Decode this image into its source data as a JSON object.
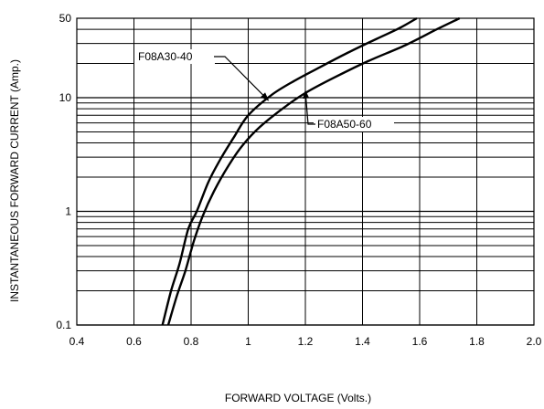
{
  "chart_data": {
    "type": "line",
    "title": "",
    "xlabel": "FORWARD VOLTAGE (Volts.)",
    "ylabel": "INSTANTANEOUS FORWARD CURRENT (Amp.)",
    "xlim": [
      0.4,
      2.0
    ],
    "ylim": [
      0.1,
      50
    ],
    "yscale": "log",
    "grid": true,
    "x_ticks": [
      0.4,
      0.6,
      0.8,
      1.0,
      1.2,
      1.4,
      1.6,
      1.8,
      2.0
    ],
    "x_tick_labels": [
      "0.4",
      "0.6",
      "0.8",
      "1",
      "1.2",
      "1.4",
      "1.6",
      "1.8",
      "2.0"
    ],
    "y_ticks": [
      0.1,
      1,
      10,
      50
    ],
    "y_tick_labels": [
      "0.1",
      "1",
      "10",
      "50"
    ],
    "series": [
      {
        "name": "F08A30-40",
        "x": [
          0.7,
          0.73,
          0.76,
          0.79,
          0.82,
          0.86,
          0.9,
          0.95,
          1.0,
          1.08,
          1.16,
          1.25,
          1.35,
          1.45,
          1.53,
          1.59
        ],
        "y": [
          0.1,
          0.2,
          0.35,
          0.7,
          1.0,
          1.8,
          2.8,
          4.5,
          7.0,
          10.5,
          14.0,
          18.5,
          25.0,
          33.0,
          41.0,
          50.0
        ]
      },
      {
        "name": "F08A50-60",
        "x": [
          0.72,
          0.75,
          0.78,
          0.81,
          0.84,
          0.88,
          0.93,
          0.98,
          1.04,
          1.12,
          1.2,
          1.3,
          1.42,
          1.55,
          1.66,
          1.74
        ],
        "y": [
          0.1,
          0.18,
          0.3,
          0.55,
          0.9,
          1.5,
          2.5,
          3.8,
          5.5,
          8.0,
          11.0,
          15.0,
          21.0,
          29.0,
          40.0,
          50.0
        ]
      }
    ],
    "annotations": [
      {
        "text": "F08A30-40",
        "points_to_x": 1.07,
        "points_to_y": 9.5
      },
      {
        "text": "F08A50-60",
        "points_to_x": 1.2,
        "points_to_y": 11.5
      }
    ]
  }
}
